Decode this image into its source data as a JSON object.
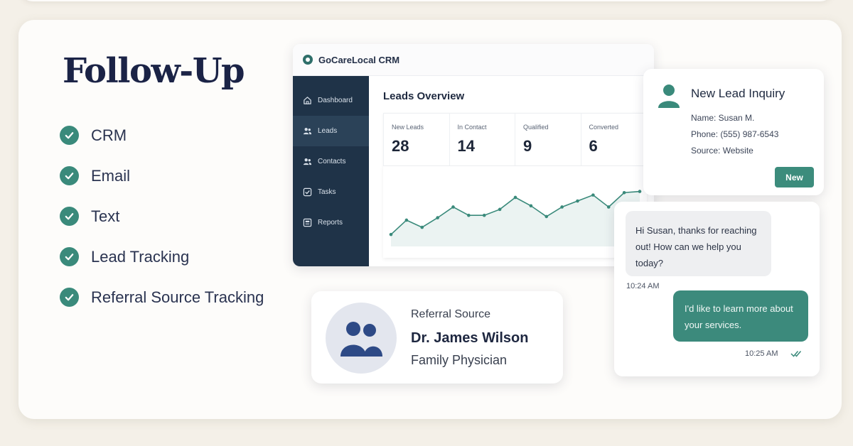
{
  "heading": "Follow-Up",
  "features": [
    "CRM",
    "Email",
    "Text",
    "Lead Tracking",
    "Referral Source Tracking"
  ],
  "colors": {
    "accent": "#3a8a7b",
    "sidebar": "#1f3348",
    "heading": "#1b2346"
  },
  "crm": {
    "title": "GoCareLocal CRM",
    "nav": [
      {
        "label": "Dashboard",
        "icon": "home-icon"
      },
      {
        "label": "Leads",
        "icon": "users-icon",
        "active": true
      },
      {
        "label": "Contacts",
        "icon": "contacts-icon"
      },
      {
        "label": "Tasks",
        "icon": "checkbox-icon"
      },
      {
        "label": "Reports",
        "icon": "report-icon"
      }
    ],
    "leads_title": "Leads Overview",
    "stats": [
      {
        "label": "New Leads",
        "value": "28"
      },
      {
        "label": "In Contact",
        "value": "14"
      },
      {
        "label": "Qualified",
        "value": "9"
      },
      {
        "label": "Converted",
        "value": "6"
      }
    ]
  },
  "chart_data": {
    "type": "area",
    "values": [
      10,
      22,
      16,
      24,
      33,
      26,
      26,
      31,
      41,
      34,
      25,
      33,
      38,
      43,
      33,
      45,
      46
    ],
    "ylim": [
      0,
      60
    ],
    "grid": false,
    "color": "#3a8a7b"
  },
  "lead_card": {
    "title": "New Lead Inquiry",
    "name": "Name: Susan M.",
    "phone": "Phone: (555) 987-6543",
    "source": "Source: Website",
    "button": "New"
  },
  "chat": {
    "incoming": "Hi Susan, thanks for reaching out! How can we help you today?",
    "incoming_time": "10:24 AM",
    "outgoing": "I'd like to learn more about your services.",
    "outgoing_time": "10:25 AM"
  },
  "referral": {
    "label": "Referral Source",
    "name": "Dr. James Wilson",
    "role": "Family Physician"
  }
}
